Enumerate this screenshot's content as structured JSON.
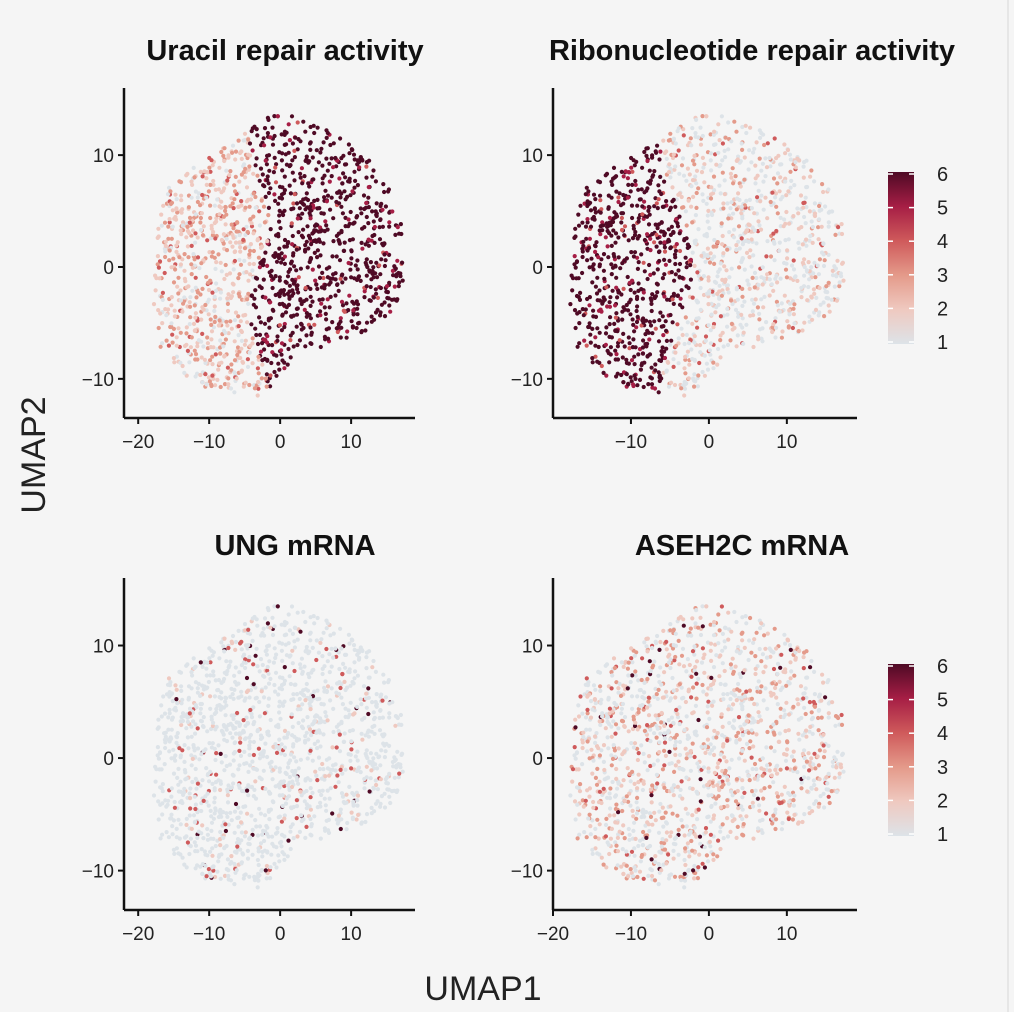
{
  "chart_data": {
    "type": "scatter",
    "xlabel": "UMAP1",
    "ylabel": "UMAP2",
    "colorscale": {
      "min": 1,
      "max": 6,
      "ticks": [
        "1",
        "2",
        "3",
        "4",
        "5",
        "6"
      ],
      "colors": [
        "#dde3e8",
        "#efc9c0",
        "#e49a8a",
        "#cf5a5b",
        "#a61e45",
        "#4f0a25"
      ]
    },
    "panels": [
      {
        "title": "Uracil repair activity",
        "xlim": [
          -22,
          19
        ],
        "ylim": [
          -13.5,
          16
        ],
        "xticks": [
          -20,
          -10,
          0,
          10
        ],
        "xtick_labels": [
          "−20",
          "−10",
          "0",
          "10"
        ],
        "yticks": [
          -10,
          0,
          10
        ],
        "ytick_labels": [
          "−10",
          "0",
          "10"
        ],
        "pattern": "right_high"
      },
      {
        "title": "Ribonucleotide repair activity",
        "xlim": [
          -20,
          19
        ],
        "ylim": [
          -13.5,
          16
        ],
        "xticks": [
          -10,
          0,
          10
        ],
        "xtick_labels": [
          "−10",
          "0",
          "10"
        ],
        "yticks": [
          -10,
          0,
          10
        ],
        "ytick_labels": [
          "−10",
          "0",
          "10"
        ],
        "pattern": "left_high"
      },
      {
        "title": "UNG mRNA",
        "xlim": [
          -22,
          19
        ],
        "ylim": [
          -13.5,
          16
        ],
        "xticks": [
          -20,
          -10,
          0,
          10
        ],
        "xtick_labels": [
          "−20",
          "−10",
          "0",
          "10"
        ],
        "yticks": [
          -10,
          0,
          10
        ],
        "ytick_labels": [
          "−10",
          "0",
          "10"
        ],
        "pattern": "sparse_low"
      },
      {
        "title": "ASEH2C mRNA",
        "xlim": [
          -20,
          19
        ],
        "ylim": [
          -13.5,
          16
        ],
        "xticks": [
          -20,
          -10,
          0,
          10
        ],
        "xtick_labels": [
          "−20",
          "−10",
          "0",
          "10"
        ],
        "yticks": [
          -10,
          0,
          10
        ],
        "ytick_labels": [
          "−10",
          "0",
          "10"
        ],
        "pattern": "mixed_medium"
      }
    ]
  }
}
